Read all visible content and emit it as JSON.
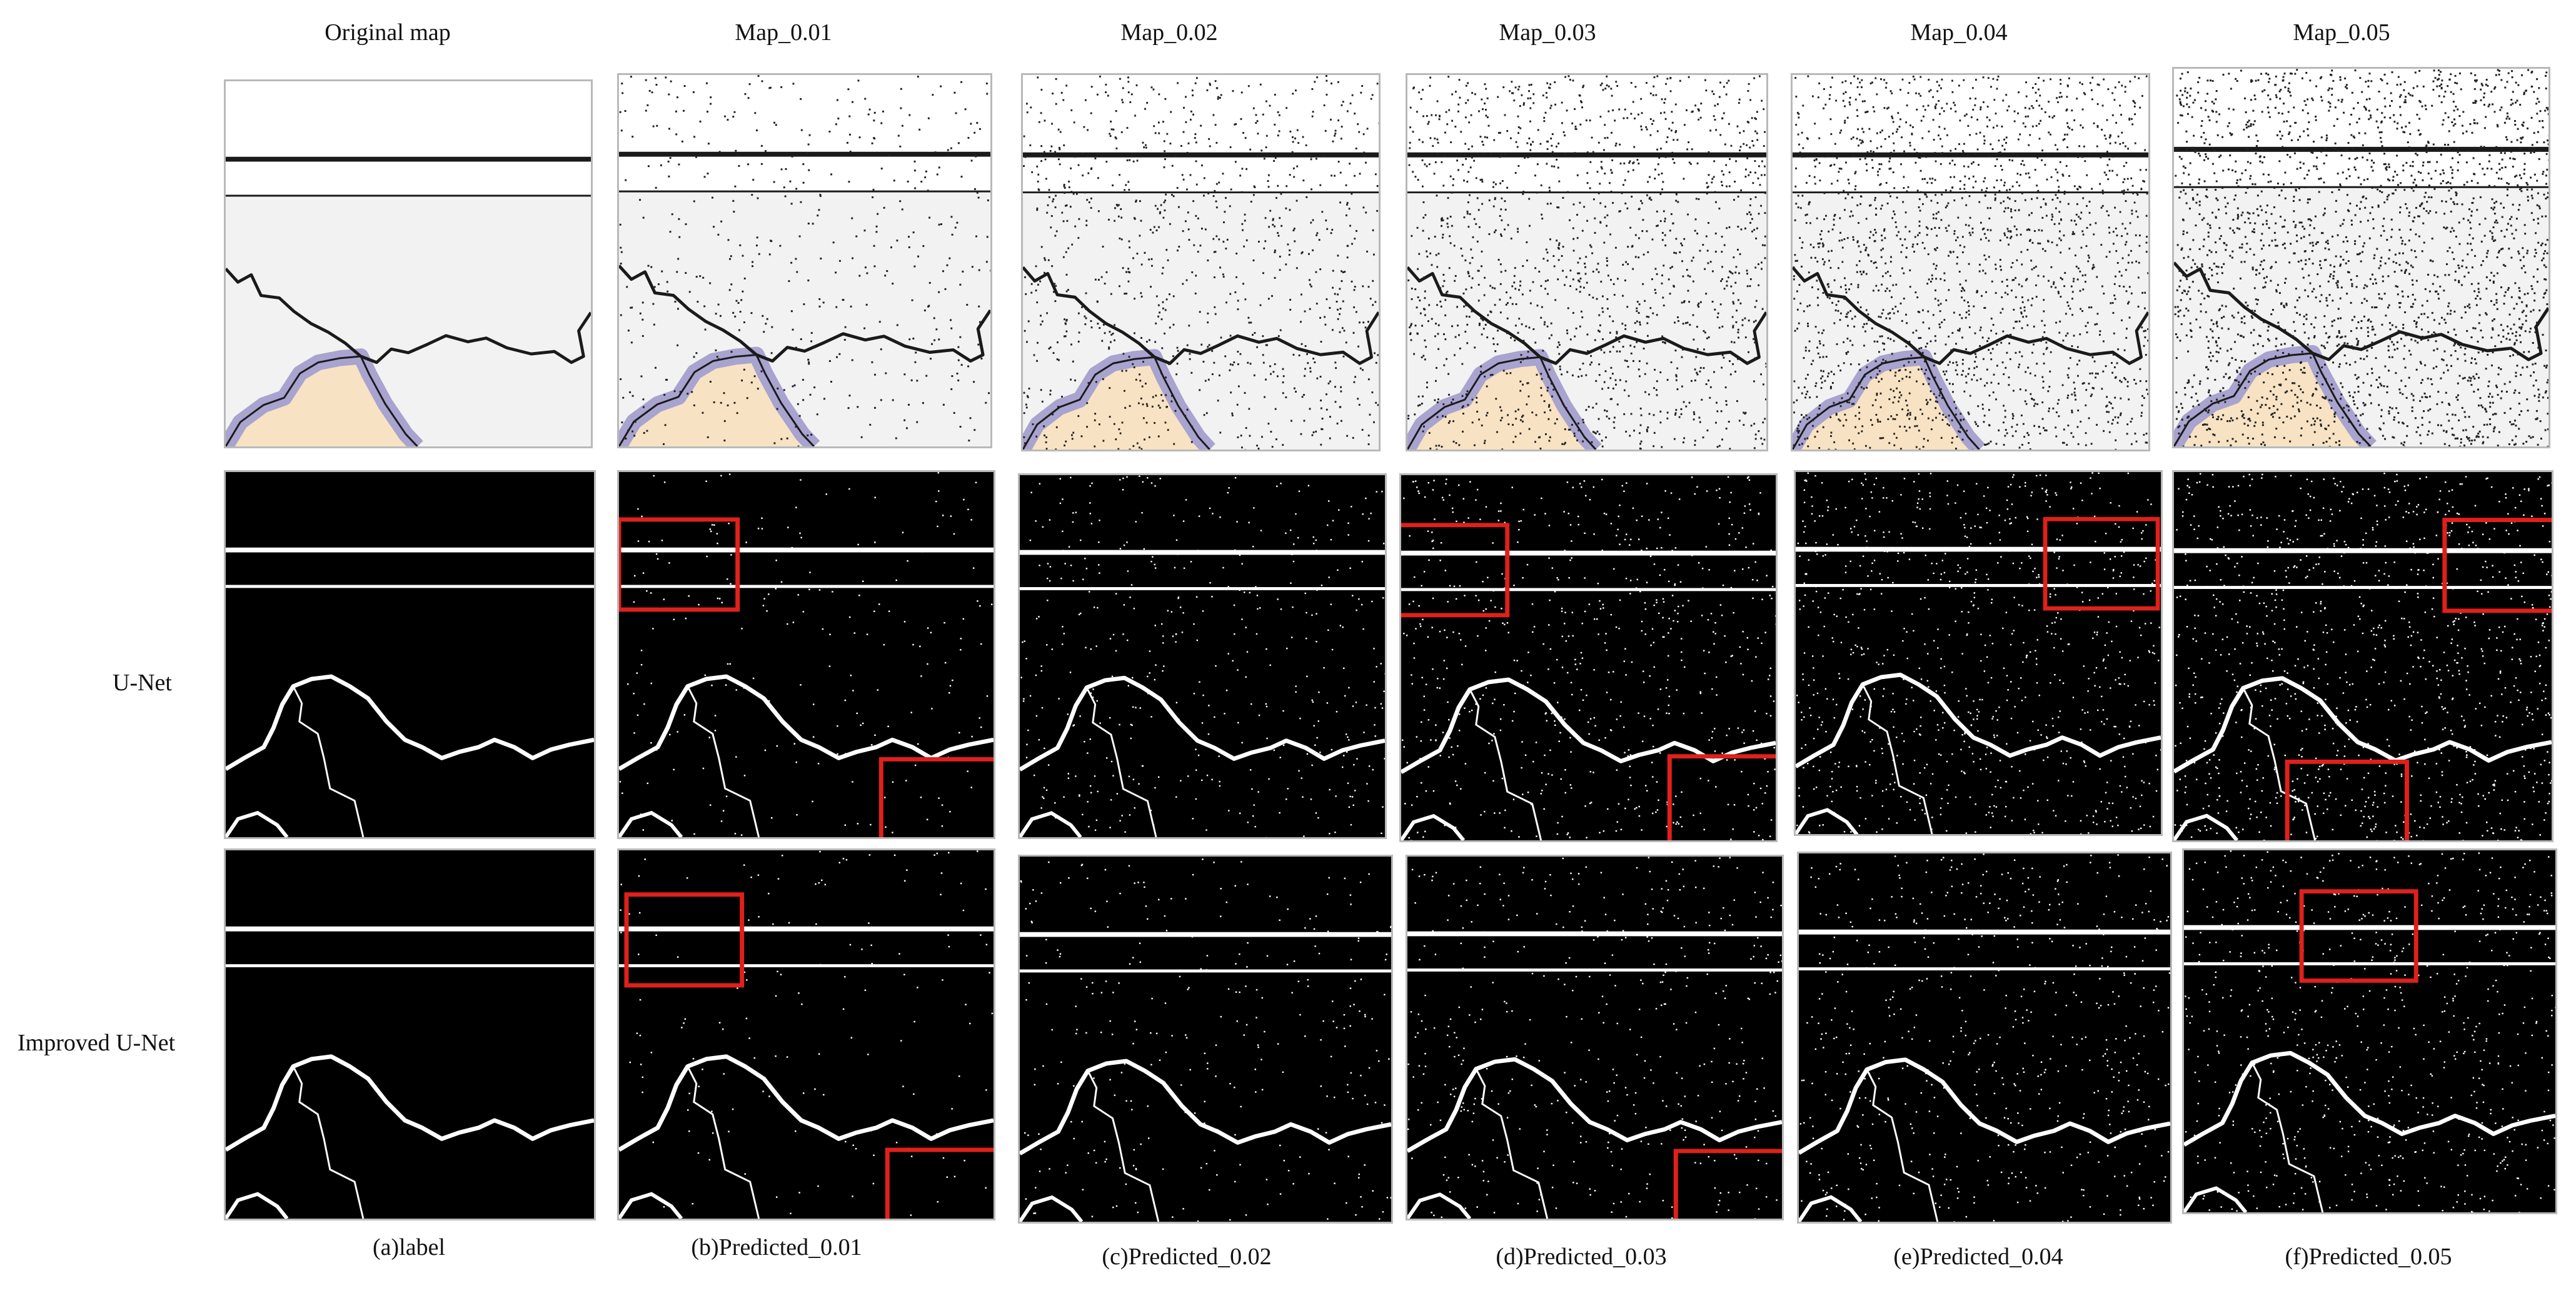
{
  "columns": [
    {
      "header": "Original  map",
      "caption": "(a)label",
      "noise": 0
    },
    {
      "header": "Map_0.01",
      "caption": "(b)Predicted_0.01",
      "noise": 0.01
    },
    {
      "header": "Map_0.02",
      "caption": "(c)Predicted_0.02",
      "noise": 0.02
    },
    {
      "header": "Map_0.03",
      "caption": "(d)Predicted_0.03",
      "noise": 0.03
    },
    {
      "header": "Map_0.04",
      "caption": "(e)Predicted_0.04",
      "noise": 0.04
    },
    {
      "header": "Map_0.05",
      "caption": "(f)Predicted_0.05",
      "noise": 0.05
    }
  ],
  "rows": [
    {
      "label": ""
    },
    {
      "label": "U-Net"
    },
    {
      "label": "Improved  U-Net"
    }
  ],
  "colors": {
    "map_background": "#f2f2f2",
    "land_fill": "#f7e3c3",
    "coast_buffer": "#a8a3cf",
    "boundary_line": "#1a1a1a",
    "prediction_background": "#000000",
    "prediction_foreground": "#ffffff",
    "highlight_box": "#e0201b",
    "noise_dot": "#222222"
  }
}
